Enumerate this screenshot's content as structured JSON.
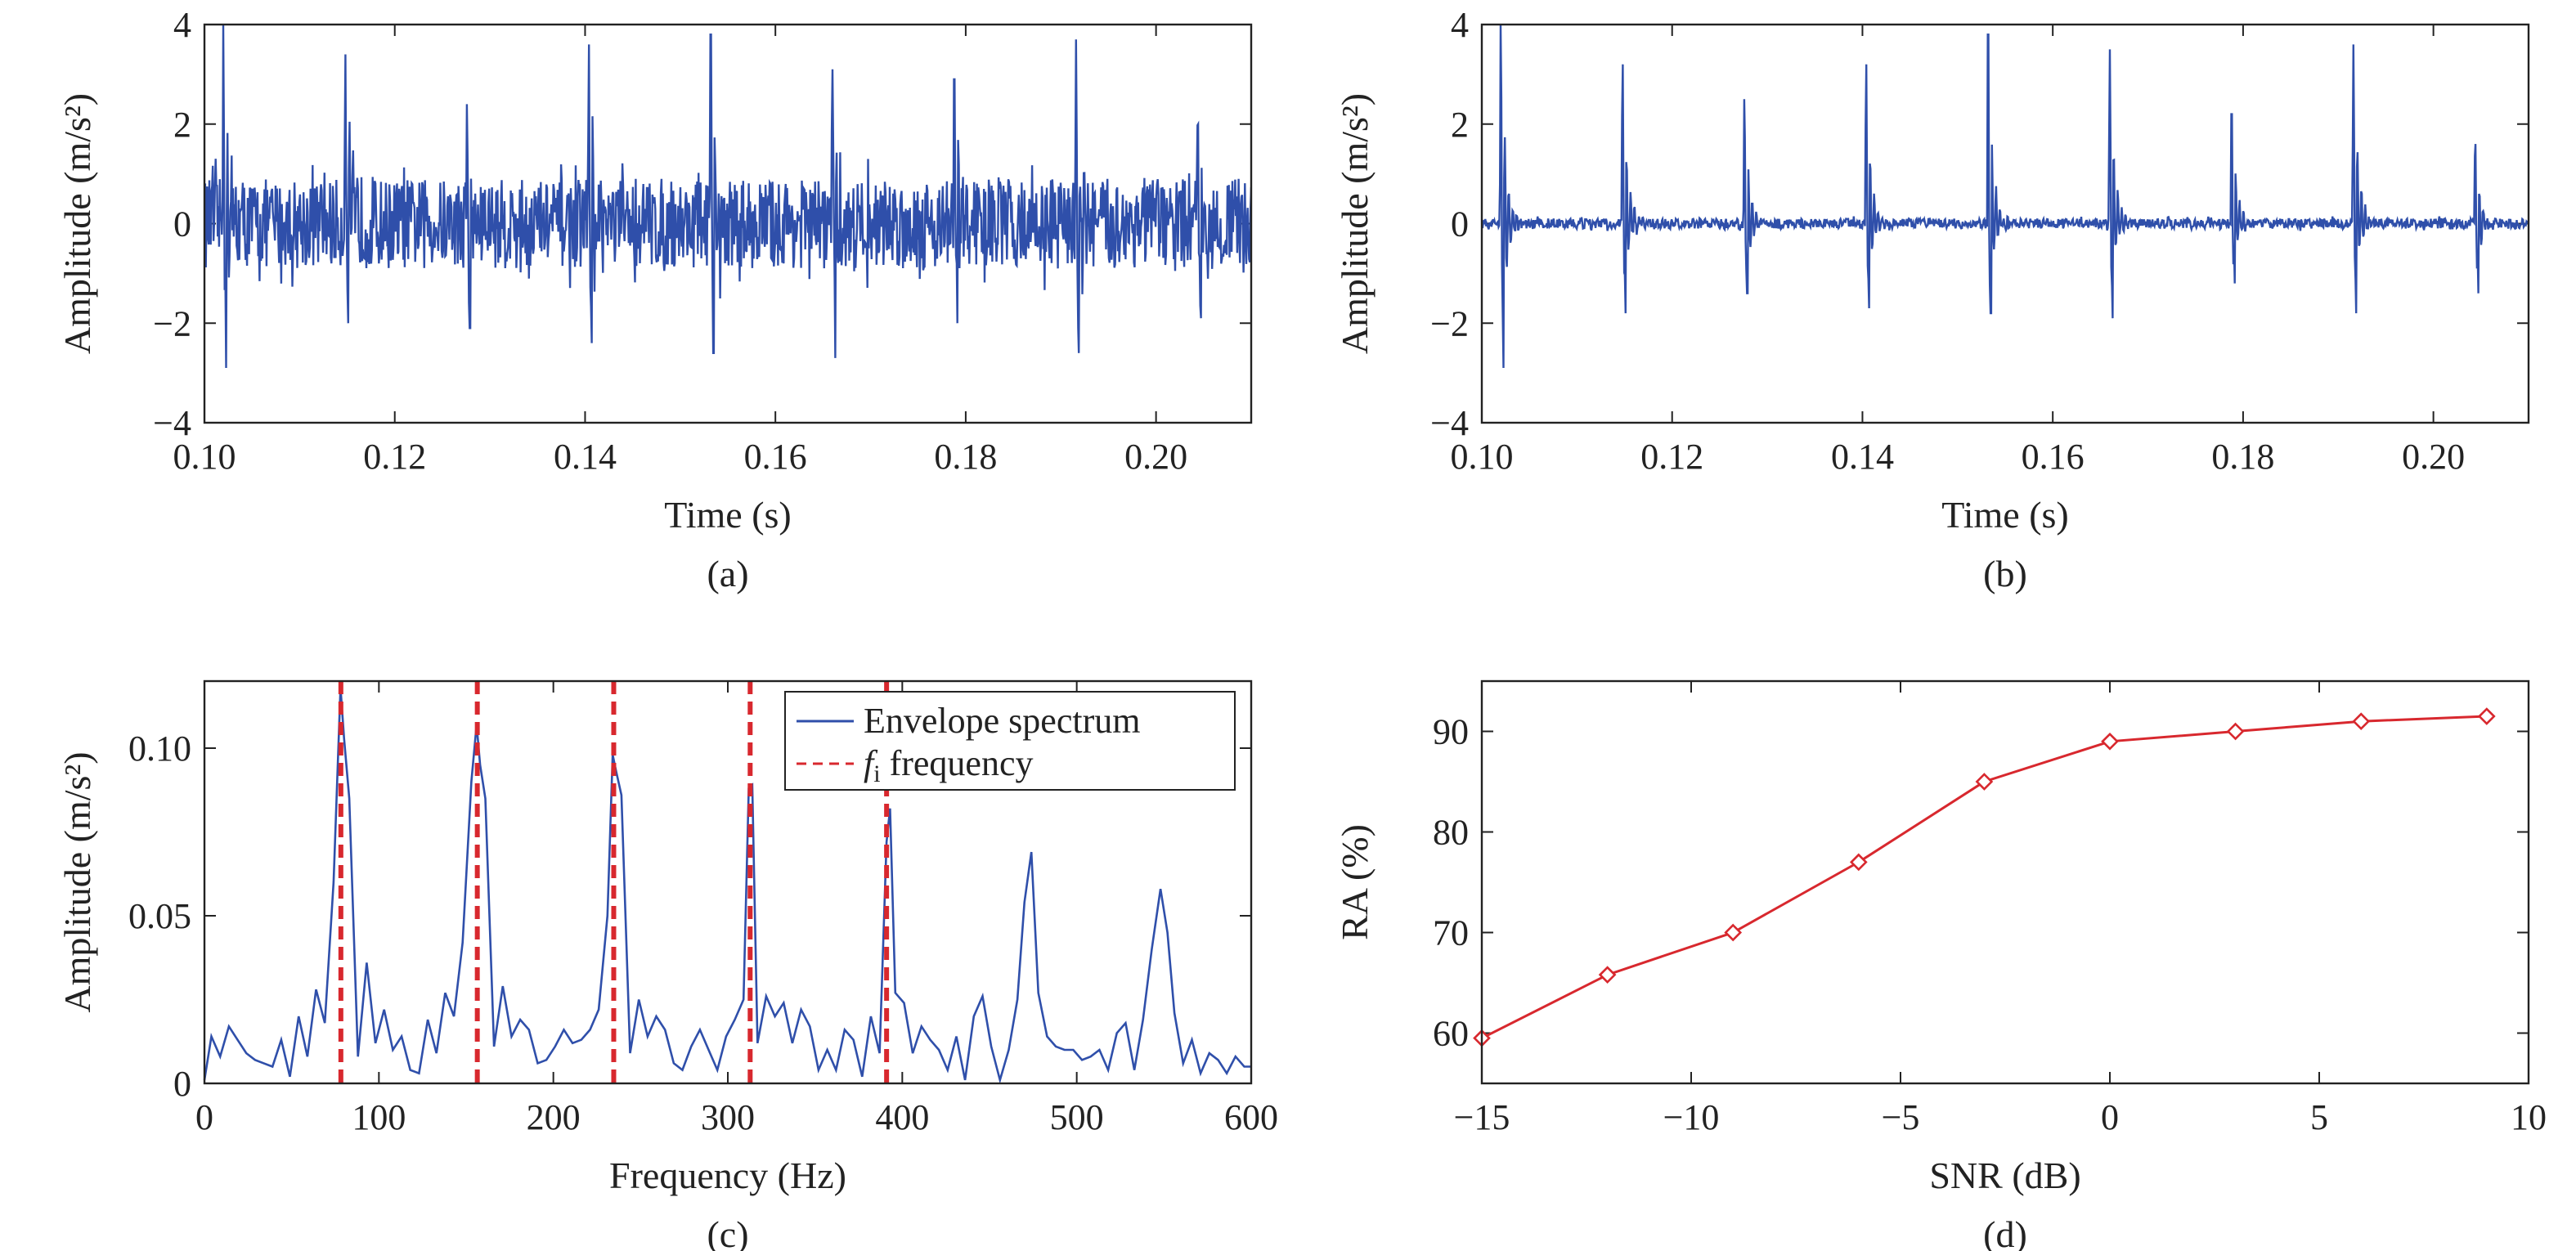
{
  "colors": {
    "signal": "#2f4faa",
    "red": "#d8282e",
    "axis": "#222222"
  },
  "chart_data": [
    {
      "type": "line",
      "caption": "(a)",
      "xlabel": "Time (s)",
      "ylabel": "Amplitude (m/s²)",
      "xlim": [
        0.1,
        0.21
      ],
      "ylim": [
        -4,
        4
      ],
      "xticks": [
        0.1,
        0.12,
        0.14,
        0.16,
        0.18,
        0.2
      ],
      "xtick_labels": [
        "0.10",
        "0.12",
        "0.14",
        "0.16",
        "0.18",
        "0.20"
      ],
      "yticks": [
        -4,
        -2,
        0,
        2,
        4
      ],
      "ytick_labels": [
        "−4",
        "−2",
        "0",
        "2",
        "4"
      ],
      "series": [
        {
          "impulse_times": [
            0.102,
            0.1148,
            0.1276,
            0.1404,
            0.1532,
            0.166,
            0.1788,
            0.1916,
            0.2044
          ],
          "impulse_peaks": [
            4.0,
            3.4,
            2.4,
            3.6,
            3.8,
            3.1,
            2.9,
            3.7,
            2.0
          ],
          "impulse_troughs": [
            -2.9,
            -2.0,
            -2.1,
            -2.4,
            -2.6,
            -2.7,
            -2.0,
            -2.6,
            -1.9
          ],
          "noise_amplitude": 0.9
        }
      ]
    },
    {
      "type": "line",
      "caption": "(b)",
      "xlabel": "Time (s)",
      "ylabel": "Amplitude (m/s²)",
      "xlim": [
        0.1,
        0.21
      ],
      "ylim": [
        -4,
        4
      ],
      "xticks": [
        0.1,
        0.12,
        0.14,
        0.16,
        0.18,
        0.2
      ],
      "xtick_labels": [
        "0.10",
        "0.12",
        "0.14",
        "0.16",
        "0.18",
        "0.20"
      ],
      "yticks": [
        -4,
        -2,
        0,
        2,
        4
      ],
      "ytick_labels": [
        "−4",
        "−2",
        "0",
        "2",
        "4"
      ],
      "series": [
        {
          "impulse_times": [
            0.102,
            0.1148,
            0.1276,
            0.1404,
            0.1532,
            0.166,
            0.1788,
            0.1916,
            0.2044
          ],
          "impulse_peaks": [
            4.0,
            3.2,
            2.5,
            3.2,
            3.8,
            3.5,
            2.2,
            3.6,
            1.6
          ],
          "impulse_troughs": [
            -2.9,
            -1.8,
            -1.4,
            -1.7,
            -1.8,
            -1.9,
            -1.2,
            -1.8,
            -1.4
          ],
          "noise_amplitude": 0.1
        }
      ]
    },
    {
      "type": "line",
      "caption": "(c)",
      "xlabel": "Frequency (Hz)",
      "ylabel": "Amplitude (m/s²)",
      "xlim": [
        0,
        600
      ],
      "ylim": [
        0,
        0.12
      ],
      "xticks": [
        0,
        100,
        200,
        300,
        400,
        500,
        600
      ],
      "xtick_labels": [
        "0",
        "100",
        "200",
        "300",
        "400",
        "500",
        "600"
      ],
      "yticks": [
        0,
        0.05,
        0.1
      ],
      "ytick_labels": [
        "0",
        "0.05",
        "0.10"
      ],
      "legend_position": "top-right",
      "legend": [
        {
          "label": "Envelope spectrum",
          "style": "solid-blue"
        },
        {
          "label_italic": "f",
          "label_sub": "i",
          "label_rest": " frequency",
          "style": "dashed-red"
        }
      ],
      "fi_lines": [
        78.2,
        156.4,
        234.6,
        312.8,
        391.0
      ],
      "series": [
        {
          "name": "Envelope spectrum",
          "x": [
            0,
            4,
            9,
            14,
            19,
            24,
            29,
            34,
            39,
            44,
            49,
            54,
            59,
            64,
            69,
            74,
            78,
            80,
            83,
            88,
            93,
            98,
            103,
            108,
            113,
            118,
            123,
            128,
            133,
            138,
            143,
            148,
            153,
            156,
            158,
            161,
            166,
            171,
            176,
            181,
            186,
            191,
            196,
            201,
            206,
            211,
            216,
            221,
            226,
            231,
            234,
            236,
            239,
            244,
            249,
            254,
            259,
            264,
            269,
            274,
            279,
            284,
            289,
            294,
            299,
            304,
            309,
            312,
            314,
            317,
            322,
            327,
            332,
            337,
            342,
            347,
            352,
            357,
            362,
            367,
            372,
            377,
            382,
            387,
            391,
            393,
            396,
            401,
            406,
            411,
            416,
            421,
            426,
            431,
            436,
            441,
            446,
            451,
            456,
            461,
            466,
            470,
            474,
            478,
            483,
            488,
            493,
            498,
            503,
            508,
            513,
            518,
            523,
            528,
            533,
            538,
            543,
            548,
            552,
            556,
            561,
            566,
            571,
            576,
            581,
            586,
            591,
            596,
            600
          ],
          "y": [
            0.001,
            0.014,
            0.008,
            0.017,
            0.013,
            0.009,
            0.007,
            0.006,
            0.005,
            0.013,
            0.002,
            0.02,
            0.008,
            0.028,
            0.018,
            0.06,
            0.118,
            0.103,
            0.085,
            0.008,
            0.036,
            0.012,
            0.022,
            0.01,
            0.014,
            0.004,
            0.003,
            0.019,
            0.009,
            0.027,
            0.02,
            0.042,
            0.09,
            0.107,
            0.095,
            0.085,
            0.011,
            0.029,
            0.014,
            0.019,
            0.016,
            0.006,
            0.007,
            0.011,
            0.016,
            0.012,
            0.013,
            0.016,
            0.022,
            0.05,
            0.098,
            0.093,
            0.086,
            0.009,
            0.025,
            0.014,
            0.02,
            0.016,
            0.006,
            0.004,
            0.011,
            0.016,
            0.01,
            0.004,
            0.014,
            0.019,
            0.025,
            0.088,
            0.089,
            0.012,
            0.026,
            0.02,
            0.024,
            0.012,
            0.022,
            0.017,
            0.004,
            0.01,
            0.004,
            0.016,
            0.013,
            0.002,
            0.02,
            0.009,
            0.072,
            0.082,
            0.027,
            0.024,
            0.009,
            0.017,
            0.013,
            0.01,
            0.004,
            0.014,
            0.001,
            0.02,
            0.026,
            0.011,
            0.001,
            0.01,
            0.025,
            0.054,
            0.069,
            0.027,
            0.014,
            0.011,
            0.01,
            0.01,
            0.007,
            0.008,
            0.01,
            0.004,
            0.015,
            0.018,
            0.004,
            0.019,
            0.04,
            0.058,
            0.045,
            0.021,
            0.006,
            0.013,
            0.003,
            0.009,
            0.007,
            0.003,
            0.008,
            0.005,
            0.005
          ]
        }
      ]
    },
    {
      "type": "line",
      "caption": "(d)",
      "xlabel": "SNR (dB)",
      "ylabel": "RA (%)",
      "xlim": [
        -15,
        10
      ],
      "ylim": [
        55,
        95
      ],
      "xticks": [
        -15,
        -10,
        -5,
        0,
        5,
        10
      ],
      "xtick_labels": [
        "−15",
        "−10",
        "−5",
        "0",
        "5",
        "10"
      ],
      "yticks": [
        60,
        70,
        80,
        90
      ],
      "ytick_labels": [
        "60",
        "70",
        "80",
        "90"
      ],
      "series": [
        {
          "x": [
            -15,
            -12,
            -9,
            -6,
            -3,
            0,
            3,
            6,
            9
          ],
          "y": [
            59.5,
            65.8,
            70.0,
            77.0,
            85.0,
            89.0,
            90.0,
            91.0,
            91.5
          ],
          "marker": "diamond"
        }
      ]
    }
  ]
}
